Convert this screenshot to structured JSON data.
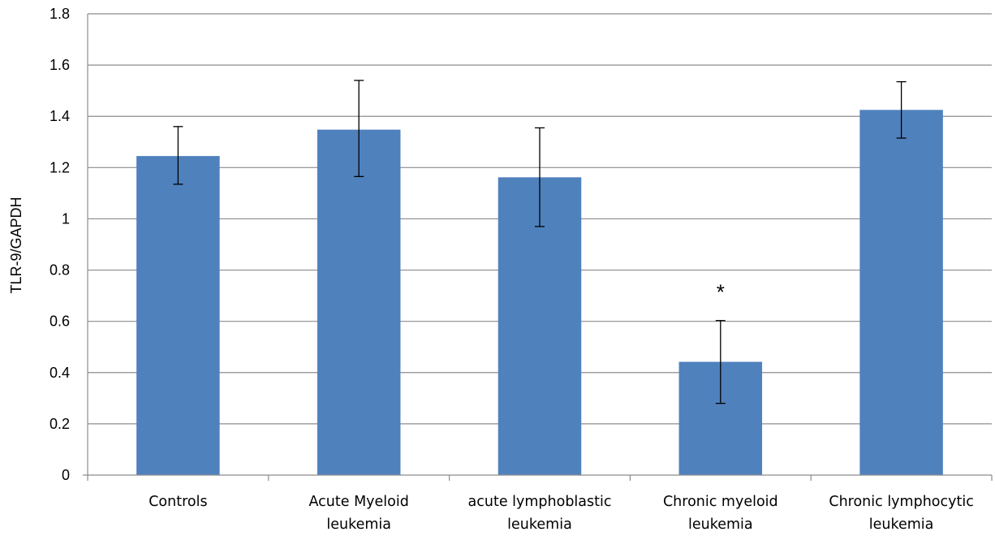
{
  "chart_data": {
    "type": "bar",
    "title": "",
    "xlabel": "",
    "ylabel": "TLR-9/GAPDH",
    "ylim": [
      0,
      1.8
    ],
    "yticks": [
      "0",
      "0.2",
      "0.4",
      "0.6",
      "0.8",
      "1",
      "1.2",
      "1.4",
      "1.6",
      "1.8"
    ],
    "grid": true,
    "legend": "none",
    "categories": [
      [
        "Controls"
      ],
      [
        "Acute Myeloid",
        "leukemia"
      ],
      [
        "acute lymphoblastic",
        "leukemia"
      ],
      [
        "Chronic myeloid",
        "leukemia"
      ],
      [
        "Chronic lymphocytic",
        "leukemia"
      ]
    ],
    "values": [
      1.245,
      1.348,
      1.162,
      0.442,
      1.425
    ],
    "error_low": [
      1.135,
      1.165,
      0.97,
      0.28,
      1.315
    ],
    "error_high": [
      1.36,
      1.54,
      1.355,
      0.603,
      1.535
    ],
    "annotations": [
      {
        "category_index": 3,
        "text": "*",
        "y": 0.74
      }
    ],
    "colors": {
      "bar": "#4f81bd",
      "grid": "#8c8c8c",
      "axis": "#8c8c8c",
      "error": "#000000"
    }
  }
}
